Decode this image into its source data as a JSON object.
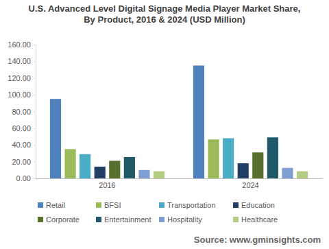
{
  "chart_data": {
    "type": "bar",
    "title": "U.S. Advanced Level Digital Signage Media Player Market Share,\nBy Product, 2016 & 2024 (USD Million)",
    "annotations": [
      "Source: www.gminsights.com"
    ],
    "categories": [
      "2016",
      "2024"
    ],
    "series": [
      {
        "name": "Retail",
        "color": "#4f81bd",
        "values": [
          95,
          135
        ]
      },
      {
        "name": "BFSI",
        "color": "#9bbb59",
        "values": [
          35,
          46.5
        ]
      },
      {
        "name": "Transportation",
        "color": "#4bacc6",
        "values": [
          29,
          48
        ]
      },
      {
        "name": "Education",
        "color": "#243f66",
        "values": [
          14,
          18
        ]
      },
      {
        "name": "Corporate",
        "color": "#58702e",
        "values": [
          21,
          31
        ]
      },
      {
        "name": "Entertainment",
        "color": "#215968",
        "values": [
          25.5,
          49
        ]
      },
      {
        "name": "Hospitality",
        "color": "#7f9fd3",
        "values": [
          10,
          12.5
        ]
      },
      {
        "name": "Healthcare",
        "color": "#b3cc82",
        "values": [
          8.5,
          8.5
        ]
      }
    ],
    "ylim": [
      0,
      160
    ],
    "yticks": [
      {
        "value": 0,
        "label": "0.00"
      },
      {
        "value": 20,
        "label": "20.00"
      },
      {
        "value": 40,
        "label": "40.00"
      },
      {
        "value": 60,
        "label": "60.00"
      },
      {
        "value": 80,
        "label": "80.00"
      },
      {
        "value": 100,
        "label": "100.00"
      },
      {
        "value": 120,
        "label": "120.00"
      },
      {
        "value": 140,
        "label": "140.00"
      },
      {
        "value": 160,
        "label": "160.00"
      }
    ],
    "grid": false,
    "legend": "bottom"
  }
}
